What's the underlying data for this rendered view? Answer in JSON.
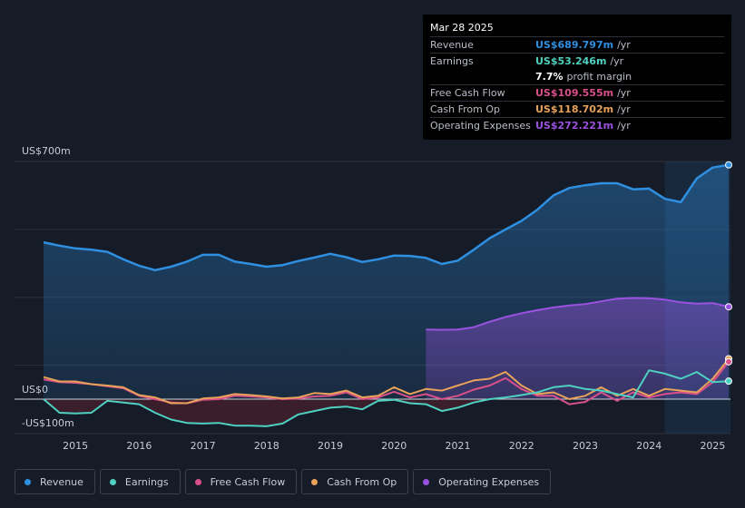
{
  "chart_data": {
    "type": "area",
    "y_axis_top_label": "US$700m",
    "y_axis_zero_label": "US$0",
    "y_axis_bottom_label": "-US$100m",
    "ylim": [
      -110,
      700
    ],
    "xlim": [
      2014.5,
      2025.25
    ],
    "x_ticks": [
      "2015",
      "2016",
      "2017",
      "2018",
      "2019",
      "2020",
      "2021",
      "2022",
      "2023",
      "2024",
      "2025"
    ],
    "x_tick_values": [
      2015,
      2016,
      2017,
      2018,
      2019,
      2020,
      2021,
      2022,
      2023,
      2024,
      2025
    ],
    "highlight_start": 2024.25,
    "series": [
      {
        "name": "Revenue",
        "color": "#2f8fe0",
        "x": [
          2014.5,
          2014.75,
          2015.0,
          2015.25,
          2015.5,
          2015.75,
          2016.0,
          2016.25,
          2016.5,
          2016.75,
          2017.0,
          2017.25,
          2017.5,
          2017.75,
          2018.0,
          2018.25,
          2018.5,
          2018.75,
          2019.0,
          2019.25,
          2019.5,
          2019.75,
          2020.0,
          2020.25,
          2020.5,
          2020.75,
          2021.0,
          2021.25,
          2021.5,
          2021.75,
          2022.0,
          2022.25,
          2022.5,
          2022.75,
          2023.0,
          2023.25,
          2023.5,
          2023.75,
          2024.0,
          2024.25,
          2024.5,
          2024.75,
          2025.0,
          2025.25
        ],
        "values": [
          462,
          452,
          444,
          440,
          434,
          412,
          393,
          380,
          390,
          405,
          425,
          425,
          405,
          398,
          390,
          395,
          407,
          417,
          428,
          418,
          404,
          412,
          423,
          422,
          416,
          398,
          408,
          440,
          474,
          500,
          525,
          558,
          600,
          622,
          630,
          636,
          636,
          618,
          620,
          590,
          580,
          650,
          682,
          690
        ]
      },
      {
        "name": "Earnings",
        "color": "#4fd1c1",
        "x": [
          2014.5,
          2014.75,
          2015.0,
          2015.25,
          2015.5,
          2015.75,
          2016.0,
          2016.25,
          2016.5,
          2016.75,
          2017.0,
          2017.25,
          2017.5,
          2017.75,
          2018.0,
          2018.25,
          2018.5,
          2018.75,
          2019.0,
          2019.25,
          2019.5,
          2019.75,
          2020.0,
          2020.25,
          2020.5,
          2020.75,
          2021.0,
          2021.25,
          2021.5,
          2021.75,
          2022.0,
          2022.25,
          2022.5,
          2022.75,
          2023.0,
          2023.25,
          2023.5,
          2023.75,
          2024.0,
          2024.25,
          2024.5,
          2024.75,
          2025.0,
          2025.25
        ],
        "values": [
          0,
          -40,
          -42,
          -40,
          -5,
          -10,
          -15,
          -40,
          -60,
          -70,
          -72,
          -70,
          -78,
          -78,
          -80,
          -72,
          -45,
          -35,
          -25,
          -22,
          -30,
          -5,
          -2,
          -12,
          -15,
          -35,
          -25,
          -10,
          0,
          5,
          12,
          20,
          35,
          40,
          30,
          25,
          15,
          5,
          85,
          75,
          60,
          80,
          50,
          53
        ]
      },
      {
        "name": "Free Cash Flow",
        "color": "#d9508a",
        "x": [
          2014.5,
          2014.75,
          2015.0,
          2015.25,
          2015.5,
          2015.75,
          2016.0,
          2016.25,
          2016.5,
          2016.75,
          2017.0,
          2017.25,
          2017.5,
          2017.75,
          2018.0,
          2018.25,
          2018.5,
          2018.75,
          2019.0,
          2019.25,
          2019.5,
          2019.75,
          2020.0,
          2020.25,
          2020.5,
          2020.75,
          2021.0,
          2021.25,
          2021.5,
          2021.75,
          2022.0,
          2022.25,
          2022.5,
          2022.75,
          2023.0,
          2023.25,
          2023.5,
          2023.75,
          2024.0,
          2024.25,
          2024.5,
          2024.75,
          2025.0,
          2025.25
        ],
        "values": [
          58,
          50,
          48,
          44,
          38,
          32,
          10,
          0,
          -10,
          -12,
          -2,
          0,
          10,
          8,
          5,
          0,
          2,
          8,
          10,
          20,
          0,
          5,
          22,
          5,
          15,
          0,
          10,
          28,
          40,
          62,
          30,
          10,
          10,
          -15,
          -8,
          20,
          -5,
          20,
          5,
          15,
          20,
          15,
          50,
          110
        ]
      },
      {
        "name": "Cash From Op",
        "color": "#e8a25a",
        "x": [
          2014.5,
          2014.75,
          2015.0,
          2015.25,
          2015.5,
          2015.75,
          2016.0,
          2016.25,
          2016.5,
          2016.75,
          2017.0,
          2017.25,
          2017.5,
          2017.75,
          2018.0,
          2018.25,
          2018.5,
          2018.75,
          2019.0,
          2019.25,
          2019.5,
          2019.75,
          2020.0,
          2020.25,
          2020.5,
          2020.75,
          2021.0,
          2021.25,
          2021.5,
          2021.75,
          2022.0,
          2022.25,
          2022.5,
          2022.75,
          2023.0,
          2023.25,
          2023.5,
          2023.75,
          2024.0,
          2024.25,
          2024.5,
          2024.75,
          2025.0,
          2025.25
        ],
        "values": [
          65,
          52,
          52,
          44,
          40,
          35,
          12,
          5,
          -12,
          -12,
          2,
          5,
          15,
          12,
          8,
          2,
          5,
          18,
          15,
          25,
          5,
          10,
          35,
          15,
          30,
          25,
          40,
          55,
          60,
          80,
          40,
          15,
          20,
          0,
          10,
          35,
          10,
          30,
          10,
          30,
          25,
          20,
          60,
          119
        ]
      },
      {
        "name": "Operating Expenses",
        "color": "#9b52e0",
        "x": [
          2020.5,
          2020.75,
          2021.0,
          2021.25,
          2021.5,
          2021.75,
          2022.0,
          2022.25,
          2022.5,
          2022.75,
          2023.0,
          2023.25,
          2023.5,
          2023.75,
          2024.0,
          2024.25,
          2024.5,
          2024.75,
          2025.0,
          2025.25
        ],
        "values": [
          205,
          204,
          205,
          212,
          228,
          242,
          253,
          262,
          270,
          276,
          280,
          288,
          296,
          298,
          297,
          293,
          285,
          281,
          283,
          272
        ]
      }
    ]
  },
  "tooltip": {
    "date": "Mar 28 2025",
    "rows": [
      {
        "label": "Revenue",
        "value": "US$689.797m",
        "unit": "/yr",
        "color": "#2f8fe0"
      },
      {
        "label": "Earnings",
        "value": "US$53.246m",
        "unit": "/yr",
        "color": "#4fd1c1"
      },
      {
        "label": "",
        "value": "7.7%",
        "unit": "profit margin",
        "color": "#ffffff"
      },
      {
        "label": "Free Cash Flow",
        "value": "US$109.555m",
        "unit": "/yr",
        "color": "#d9508a"
      },
      {
        "label": "Cash From Op",
        "value": "US$118.702m",
        "unit": "/yr",
        "color": "#e8a25a"
      },
      {
        "label": "Operating Expenses",
        "value": "US$272.221m",
        "unit": "/yr",
        "color": "#9b52e0"
      }
    ]
  },
  "legend": [
    {
      "label": "Revenue",
      "color": "#2f8fe0"
    },
    {
      "label": "Earnings",
      "color": "#4fd1c1"
    },
    {
      "label": "Free Cash Flow",
      "color": "#d9508a"
    },
    {
      "label": "Cash From Op",
      "color": "#e8a25a"
    },
    {
      "label": "Operating Expenses",
      "color": "#9b52e0"
    }
  ]
}
